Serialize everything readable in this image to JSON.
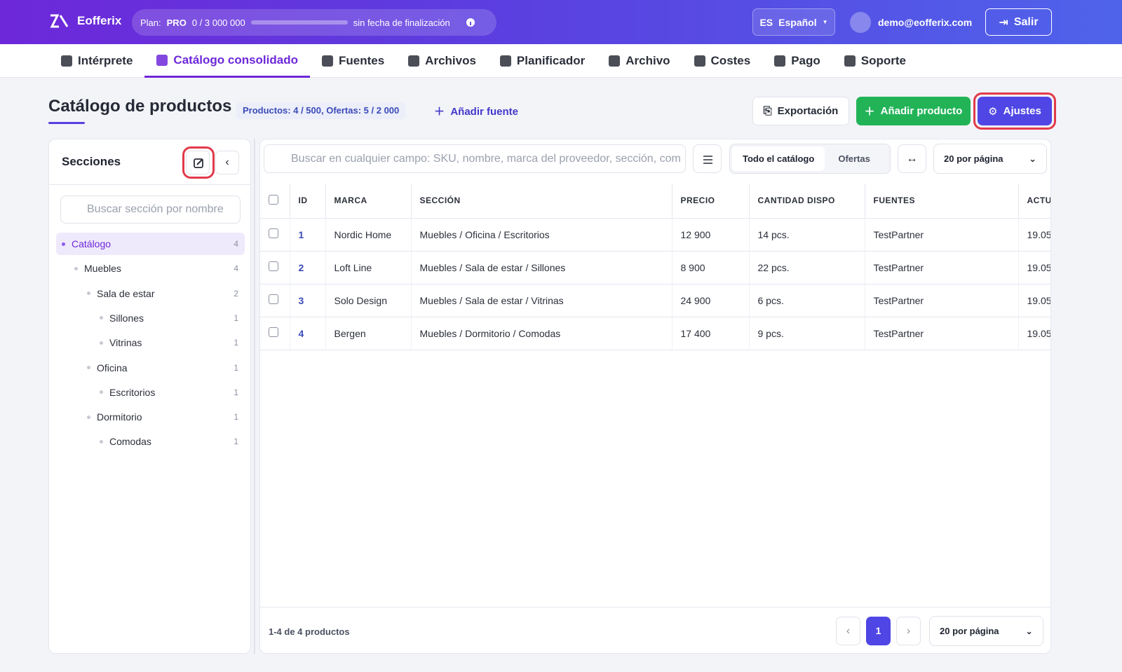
{
  "header": {
    "logo": "Eofferix",
    "plan_label": "Plan:",
    "plan": "PRO",
    "usage": "0 / 3 000 000",
    "expiry": "sin fecha de finalización",
    "lang_code": "ES",
    "lang": "Español",
    "email": "demo@eofferix.com",
    "logout": "Salir"
  },
  "nav": {
    "items": [
      "Intérprete",
      "Catálogo consolidado",
      "Fuentes",
      "Archivos",
      "Planificador",
      "Archivo",
      "Costes",
      "Pago",
      "Soporte"
    ],
    "active": "Catálogo consolidado"
  },
  "page": {
    "title": "Catálogo de productos",
    "counts": "Productos: 4 / 500, Ofertas: 5 / 2 000",
    "add_source": "Añadir fuente",
    "export": "Exportación",
    "add_product": "Añadir producto",
    "settings": "Ajustes"
  },
  "sidebar": {
    "title": "Secciones",
    "search_placeholder": "Buscar sección por nombre",
    "tree": [
      {
        "label": "Catálogo",
        "count": 4,
        "children": [
          {
            "label": "Muebles",
            "count": 4,
            "children": [
              {
                "label": "Sala de estar",
                "count": 2,
                "children": [
                  {
                    "label": "Sillones",
                    "count": 1
                  },
                  {
                    "label": "Vitrinas",
                    "count": 1
                  }
                ]
              },
              {
                "label": "Oficina",
                "count": 1,
                "children": [
                  {
                    "label": "Escritorios",
                    "count": 1
                  }
                ]
              },
              {
                "label": "Dormitorio",
                "count": 1,
                "children": [
                  {
                    "label": "Comodas",
                    "count": 1
                  }
                ]
              }
            ]
          }
        ]
      }
    ]
  },
  "toolbar": {
    "search_placeholder": "Buscar en cualquier campo: SKU, nombre, marca del proveedor, sección, com",
    "tabs": [
      "Todo el catálogo",
      "Ofertas"
    ],
    "active_tab": "Todo el catálogo",
    "per_page": "20 por página"
  },
  "table": {
    "columns": [
      "ID",
      "MARCA",
      "SECCIÓN",
      "PRECIO",
      "CANTIDAD DISPO",
      "FUENTES",
      "ACTU"
    ],
    "rows": [
      [
        1,
        "Nordic Home",
        "Muebles / Oficina / Escritorios",
        "12 900",
        "14 pcs.",
        "TestPartner",
        "19.05"
      ],
      [
        2,
        "Loft Line",
        "Muebles / Sala de estar / Sillones",
        "8 900",
        "22 pcs.",
        "TestPartner",
        "19.05"
      ],
      [
        3,
        "Solo Design",
        "Muebles / Sala de estar / Vitrinas",
        "24 900",
        "6 pcs.",
        "TestPartner",
        "19.05"
      ],
      [
        4,
        "Bergen",
        "Muebles / Dormitorio / Comodas",
        "17 400",
        "9 pcs.",
        "TestPartner",
        "19.05"
      ]
    ]
  },
  "footer": {
    "range": "1-4 de 4 productos",
    "page": 1,
    "per_page": "20 por página"
  }
}
